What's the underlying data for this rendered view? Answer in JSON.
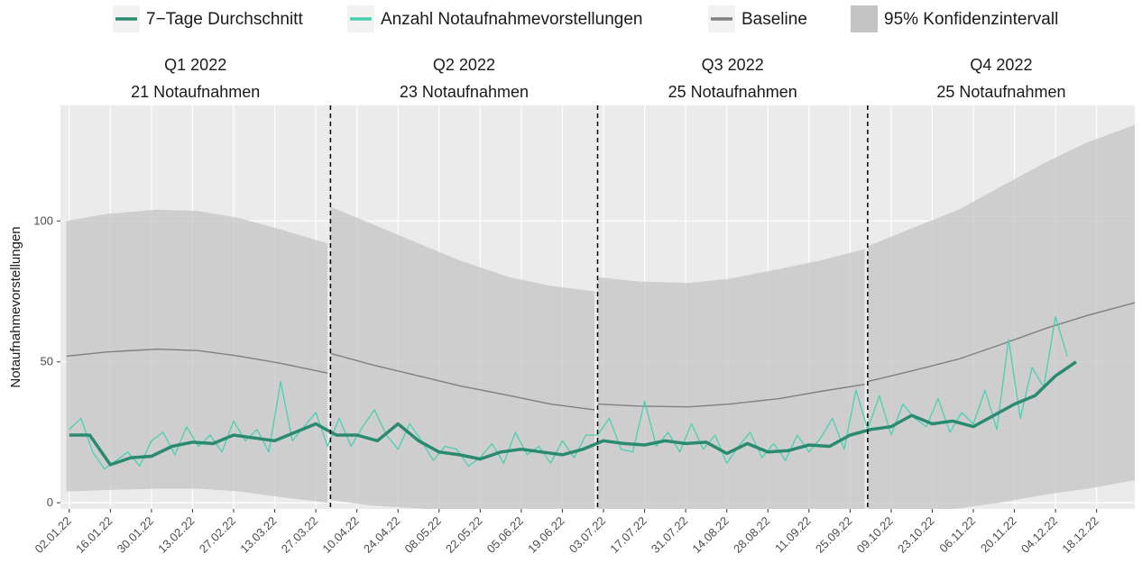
{
  "chart_data": {
    "type": "line",
    "y_label": "Notaufnahmevorstellungen",
    "xlim": [
      "2021-12-30",
      "2022-12-31"
    ],
    "ylim": [
      -2.2,
      141
    ],
    "yticks": [
      0,
      50,
      100
    ],
    "grid": true,
    "legend": "top",
    "xticks": [
      {
        "value": "2022-01-02",
        "label": "02.01.22"
      },
      {
        "value": "2022-01-16",
        "label": "16.01.22"
      },
      {
        "value": "2022-01-30",
        "label": "30.01.22"
      },
      {
        "value": "2022-02-13",
        "label": "13.02.22"
      },
      {
        "value": "2022-02-27",
        "label": "27.02.22"
      },
      {
        "value": "2022-03-13",
        "label": "13.03.22"
      },
      {
        "value": "2022-03-27",
        "label": "27.03.22"
      },
      {
        "value": "2022-04-10",
        "label": "10.04.22"
      },
      {
        "value": "2022-04-24",
        "label": "24.04.22"
      },
      {
        "value": "2022-05-08",
        "label": "08.05.22"
      },
      {
        "value": "2022-05-22",
        "label": "22.05.22"
      },
      {
        "value": "2022-06-05",
        "label": "05.06.22"
      },
      {
        "value": "2022-06-19",
        "label": "19.06.22"
      },
      {
        "value": "2022-07-03",
        "label": "03.07.22"
      },
      {
        "value": "2022-07-17",
        "label": "17.07.22"
      },
      {
        "value": "2022-07-31",
        "label": "31.07.22"
      },
      {
        "value": "2022-08-14",
        "label": "14.08.22"
      },
      {
        "value": "2022-08-28",
        "label": "28.08.22"
      },
      {
        "value": "2022-09-11",
        "label": "11.09.22"
      },
      {
        "value": "2022-09-25",
        "label": "25.09.22"
      },
      {
        "value": "2022-10-09",
        "label": "09.10.22"
      },
      {
        "value": "2022-10-23",
        "label": "23.10.22"
      },
      {
        "value": "2022-11-06",
        "label": "06.11.22"
      },
      {
        "value": "2022-11-20",
        "label": "20.11.22"
      },
      {
        "value": "2022-12-04",
        "label": "04.12.22"
      },
      {
        "value": "2022-12-18",
        "label": "18.12.22"
      }
    ],
    "quarters": [
      {
        "start": "2021-12-30",
        "end": "2022-04-01",
        "label": "Q1 2022",
        "count": "21 Notaufnahmen"
      },
      {
        "start": "2022-04-01",
        "end": "2022-07-01",
        "label": "Q2 2022",
        "count": "23 Notaufnahmen"
      },
      {
        "start": "2022-07-01",
        "end": "2022-10-01",
        "label": "Q3 2022",
        "count": "25 Notaufnahmen"
      },
      {
        "start": "2022-10-01",
        "end": "2022-12-31",
        "label": "Q4 2022",
        "count": "25 Notaufnahmen"
      }
    ],
    "series": [
      {
        "name": "7−Tage Durchschnitt",
        "color": "#2a8a70",
        "width": 3.5,
        "x": [
          "2022-01-02",
          "2022-01-09",
          "2022-01-16",
          "2022-01-23",
          "2022-01-30",
          "2022-02-06",
          "2022-02-13",
          "2022-02-20",
          "2022-02-27",
          "2022-03-06",
          "2022-03-13",
          "2022-03-20",
          "2022-03-27",
          "2022-04-03",
          "2022-04-10",
          "2022-04-17",
          "2022-04-24",
          "2022-05-01",
          "2022-05-08",
          "2022-05-15",
          "2022-05-22",
          "2022-05-29",
          "2022-06-05",
          "2022-06-12",
          "2022-06-19",
          "2022-06-26",
          "2022-07-03",
          "2022-07-10",
          "2022-07-17",
          "2022-07-24",
          "2022-07-31",
          "2022-08-07",
          "2022-08-14",
          "2022-08-21",
          "2022-08-28",
          "2022-09-04",
          "2022-09-11",
          "2022-09-18",
          "2022-09-25",
          "2022-10-02",
          "2022-10-09",
          "2022-10-16",
          "2022-10-23",
          "2022-10-30",
          "2022-11-06",
          "2022-11-13",
          "2022-11-20",
          "2022-11-27",
          "2022-12-04",
          "2022-12-11"
        ],
        "values": [
          24,
          24,
          13.5,
          16,
          16.5,
          20,
          21.5,
          21,
          24,
          23,
          22,
          25,
          28,
          24,
          24,
          22,
          28,
          22,
          18,
          17,
          15.5,
          18,
          19,
          18,
          17,
          19,
          22,
          21,
          20.5,
          22,
          21,
          21.5,
          17.5,
          21,
          18,
          18.5,
          20.5,
          20,
          24,
          26,
          27,
          31,
          28,
          29,
          27,
          31,
          35,
          38,
          45,
          50
        ]
      },
      {
        "name": "Anzahl Notaufnahmevorstellungen",
        "color": "#48d1b0",
        "width": 1.3,
        "x": [
          "2022-01-02",
          "2022-01-06",
          "2022-01-10",
          "2022-01-14",
          "2022-01-18",
          "2022-01-22",
          "2022-01-26",
          "2022-01-30",
          "2022-02-03",
          "2022-02-07",
          "2022-02-11",
          "2022-02-15",
          "2022-02-19",
          "2022-02-23",
          "2022-02-27",
          "2022-03-03",
          "2022-03-07",
          "2022-03-11",
          "2022-03-15",
          "2022-03-19",
          "2022-03-23",
          "2022-03-27",
          "2022-03-31",
          "2022-04-04",
          "2022-04-08",
          "2022-04-12",
          "2022-04-16",
          "2022-04-20",
          "2022-04-24",
          "2022-04-28",
          "2022-05-02",
          "2022-05-06",
          "2022-05-10",
          "2022-05-14",
          "2022-05-18",
          "2022-05-22",
          "2022-05-26",
          "2022-05-30",
          "2022-06-03",
          "2022-06-07",
          "2022-06-11",
          "2022-06-15",
          "2022-06-19",
          "2022-06-23",
          "2022-06-27",
          "2022-07-01",
          "2022-07-05",
          "2022-07-09",
          "2022-07-13",
          "2022-07-17",
          "2022-07-21",
          "2022-07-25",
          "2022-07-29",
          "2022-08-02",
          "2022-08-06",
          "2022-08-10",
          "2022-08-14",
          "2022-08-18",
          "2022-08-22",
          "2022-08-26",
          "2022-08-30",
          "2022-09-03",
          "2022-09-07",
          "2022-09-11",
          "2022-09-15",
          "2022-09-19",
          "2022-09-23",
          "2022-09-27",
          "2022-10-01",
          "2022-10-05",
          "2022-10-09",
          "2022-10-13",
          "2022-10-17",
          "2022-10-21",
          "2022-10-25",
          "2022-10-29",
          "2022-11-02",
          "2022-11-06",
          "2022-11-10",
          "2022-11-14",
          "2022-11-18",
          "2022-11-22",
          "2022-11-26",
          "2022-11-30",
          "2022-12-04",
          "2022-12-08"
        ],
        "values": [
          26,
          30,
          18,
          12,
          15,
          18,
          13,
          22,
          25,
          17,
          27,
          20,
          24,
          18,
          29,
          22,
          26,
          18,
          43,
          22,
          27,
          32,
          20,
          30,
          20,
          27,
          33,
          24,
          19,
          28,
          22,
          15,
          20,
          19,
          13,
          16,
          21,
          14,
          25,
          17,
          20,
          14,
          22,
          16,
          24,
          24,
          30,
          19,
          18,
          36,
          20,
          25,
          18,
          28,
          19,
          24,
          14,
          20,
          25,
          16,
          21,
          15,
          24,
          18,
          23,
          30,
          19,
          40,
          26,
          38,
          24,
          35,
          30,
          27,
          37,
          25,
          32,
          28,
          40,
          26,
          58,
          30,
          48,
          41,
          66,
          52
        ]
      }
    ],
    "baseline": {
      "name": "Baseline",
      "color": "#7f7f7f",
      "segments": [
        {
          "x": [
            "2022-01-01",
            "2022-01-15",
            "2022-02-01",
            "2022-02-15",
            "2022-03-01",
            "2022-03-15",
            "2022-03-31"
          ],
          "values": [
            52,
            53.5,
            54.5,
            54,
            52,
            49.5,
            46
          ],
          "upper": [
            100,
            102.5,
            104,
            103.5,
            101,
            97,
            92
          ],
          "lower": [
            4,
            4.5,
            5,
            5,
            4,
            2,
            0
          ]
        },
        {
          "x": [
            "2022-04-01",
            "2022-04-15",
            "2022-05-01",
            "2022-05-15",
            "2022-06-01",
            "2022-06-15",
            "2022-06-30"
          ],
          "values": [
            53,
            49,
            45,
            41.5,
            38,
            35,
            33
          ],
          "upper": [
            105,
            99,
            92,
            86,
            80,
            77,
            75
          ],
          "lower": [
            1,
            -1,
            -2,
            -3,
            -4,
            -6,
            -9
          ]
        },
        {
          "x": [
            "2022-07-01",
            "2022-07-15",
            "2022-08-01",
            "2022-08-15",
            "2022-09-01",
            "2022-09-15",
            "2022-09-30"
          ],
          "values": [
            35,
            34.3,
            34,
            35,
            37,
            39.5,
            42
          ],
          "upper": [
            80,
            78.5,
            78,
            79.5,
            83,
            86,
            90
          ],
          "lower": [
            -10,
            -10,
            -10,
            -10,
            -9,
            -8,
            -6
          ]
        },
        {
          "x": [
            "2022-10-01",
            "2022-10-15",
            "2022-11-01",
            "2022-11-15",
            "2022-12-01",
            "2022-12-15",
            "2022-12-31"
          ],
          "values": [
            43,
            46.5,
            51,
            56,
            62,
            66.5,
            71
          ],
          "upper": [
            91,
            97,
            104,
            112,
            121,
            128,
            134
          ],
          "lower": [
            -5,
            -4,
            -2,
            0,
            3,
            5,
            8
          ]
        }
      ]
    },
    "ci": {
      "name": "95% Konfidenzintervall",
      "color": "#c4c4c4"
    }
  }
}
